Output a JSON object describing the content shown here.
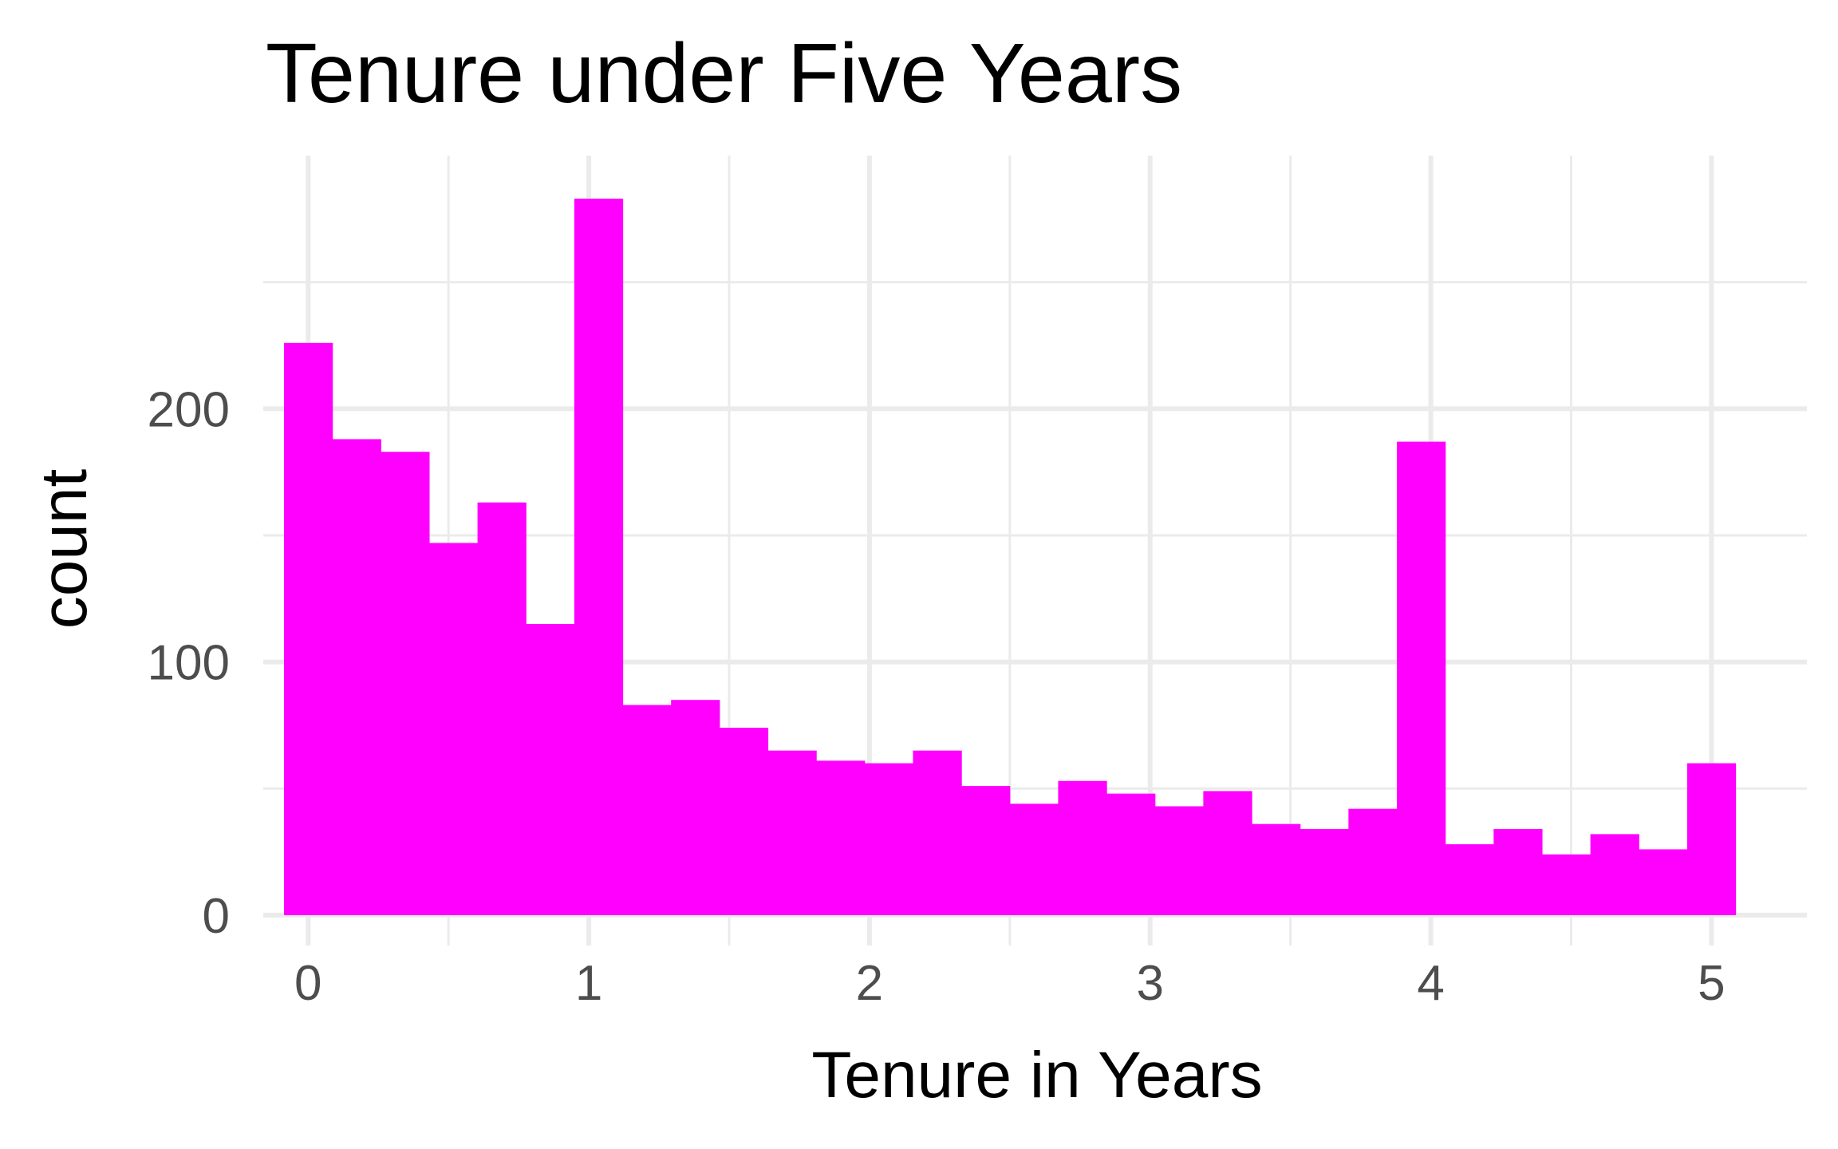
{
  "chart_data": {
    "type": "bar",
    "title": "Tenure under Five Years",
    "xlabel": "Tenure in Years",
    "ylabel": "count",
    "xlim": [
      -0.16,
      5.34
    ],
    "ylim": [
      -12,
      300
    ],
    "x_ticks": [
      0,
      1,
      2,
      3,
      4,
      5
    ],
    "y_ticks": [
      0,
      100,
      200
    ],
    "bin_width": 0.1724,
    "bin_start": -0.0862,
    "values": [
      226,
      188,
      183,
      147,
      163,
      115,
      283,
      83,
      85,
      74,
      65,
      61,
      60,
      65,
      51,
      44,
      53,
      48,
      43,
      49,
      36,
      34,
      42,
      187,
      28,
      34,
      24,
      32,
      26,
      60
    ],
    "grid": true,
    "fill_color": "#ff00ff",
    "grid_color": "#ebebeb"
  }
}
